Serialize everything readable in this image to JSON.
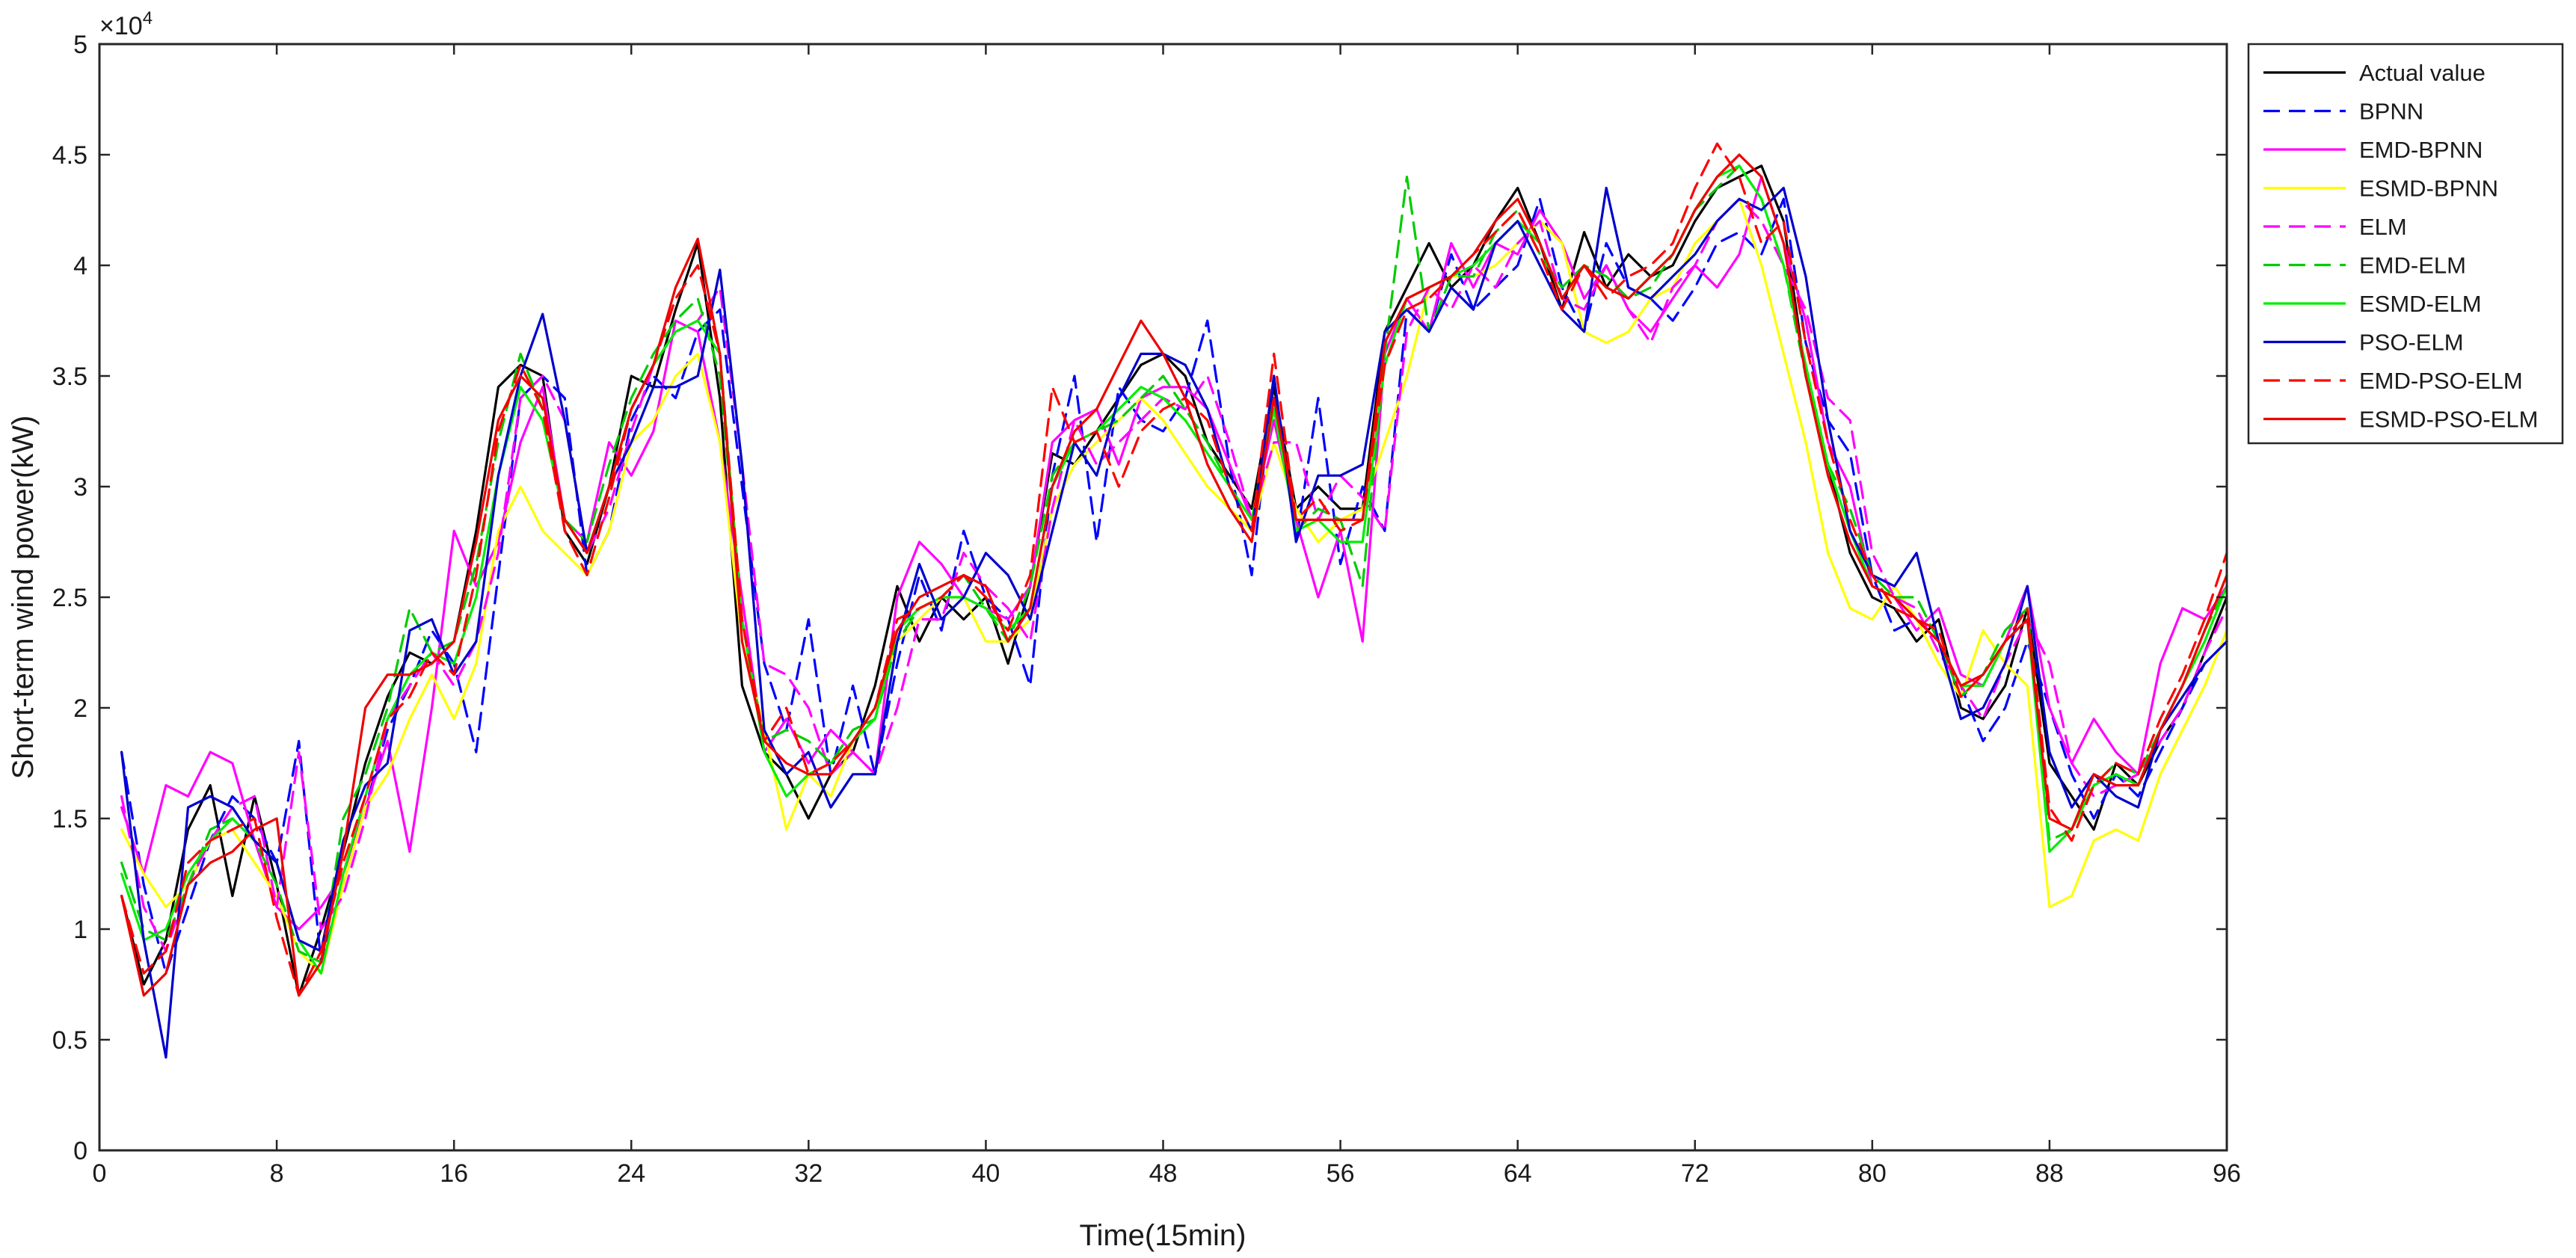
{
  "chart_data": {
    "type": "line",
    "xlabel": "Time(15min)",
    "ylabel": "Short-term wind power(kW)",
    "y_exponent_label": "×10",
    "y_exponent_power": "4",
    "xlim": [
      0,
      96
    ],
    "ylim": [
      0,
      5
    ],
    "x_ticks": [
      0,
      8,
      16,
      24,
      32,
      40,
      48,
      56,
      64,
      72,
      80,
      88,
      96
    ],
    "x_tick_labels": [
      "0",
      "8",
      "16",
      "24",
      "32",
      "40",
      "48",
      "56",
      "64",
      "72",
      "80",
      "88",
      "96"
    ],
    "y_ticks": [
      0,
      0.5,
      1,
      1.5,
      2,
      2.5,
      3,
      3.5,
      4,
      4.5,
      5
    ],
    "y_tick_labels": [
      "0",
      "0.5",
      "1",
      "1.5",
      "2",
      "2.5",
      "3",
      "3.5",
      "4",
      "4.5",
      "5"
    ],
    "grid": false,
    "legend_position": "outside-top-right",
    "x": [
      1,
      2,
      3,
      4,
      5,
      6,
      7,
      8,
      9,
      10,
      11,
      12,
      13,
      14,
      15,
      16,
      17,
      18,
      19,
      20,
      21,
      22,
      23,
      24,
      25,
      26,
      27,
      28,
      29,
      30,
      31,
      32,
      33,
      34,
      35,
      36,
      37,
      38,
      39,
      40,
      41,
      42,
      43,
      44,
      45,
      46,
      47,
      48,
      49,
      50,
      51,
      52,
      53,
      54,
      55,
      56,
      57,
      58,
      59,
      60,
      61,
      62,
      63,
      64,
      65,
      66,
      67,
      68,
      69,
      70,
      71,
      72,
      73,
      74,
      75,
      76,
      77,
      78,
      79,
      80,
      81,
      82,
      83,
      84,
      85,
      86,
      87,
      88,
      89,
      90,
      91,
      92,
      93,
      94,
      95,
      96
    ],
    "series": [
      {
        "name": "Actual value",
        "color": "#000000",
        "dash": "solid",
        "values": [
          1.15,
          0.75,
          0.95,
          1.45,
          1.65,
          1.15,
          1.6,
          1.2,
          0.7,
          1.0,
          1.35,
          1.75,
          2.05,
          2.25,
          2.2,
          2.3,
          2.8,
          3.45,
          3.55,
          3.5,
          2.8,
          2.65,
          3.0,
          3.5,
          3.45,
          3.8,
          4.1,
          3.4,
          2.1,
          1.8,
          1.7,
          1.5,
          1.7,
          1.8,
          2.1,
          2.55,
          2.3,
          2.5,
          2.4,
          2.5,
          2.2,
          2.55,
          3.15,
          3.1,
          3.25,
          3.4,
          3.55,
          3.6,
          3.5,
          3.2,
          3.05,
          2.9,
          3.45,
          2.9,
          3.0,
          2.9,
          2.9,
          3.7,
          3.9,
          4.1,
          3.9,
          4.0,
          4.2,
          4.35,
          4.1,
          3.8,
          4.15,
          3.9,
          4.05,
          3.95,
          4.0,
          4.2,
          4.35,
          4.4,
          4.45,
          4.2,
          3.5,
          3.1,
          2.7,
          2.5,
          2.45,
          2.3,
          2.4,
          2.0,
          1.95,
          2.1,
          2.45,
          1.75,
          1.6,
          1.45,
          1.75,
          1.65,
          1.85,
          2.0,
          2.25,
          2.5
        ]
      },
      {
        "name": "BPNN",
        "color": "#0000ff",
        "dash": "dashed",
        "values": [
          1.8,
          1.2,
          0.8,
          1.1,
          1.4,
          1.6,
          1.5,
          1.3,
          1.85,
          0.85,
          1.2,
          1.55,
          1.9,
          2.1,
          2.35,
          2.2,
          1.8,
          2.6,
          3.4,
          3.5,
          3.4,
          2.6,
          2.8,
          3.3,
          3.5,
          3.4,
          3.7,
          3.8,
          3.0,
          2.2,
          1.9,
          2.4,
          1.7,
          2.1,
          1.7,
          2.2,
          2.6,
          2.35,
          2.8,
          2.5,
          2.4,
          2.1,
          3.05,
          3.5,
          2.75,
          3.45,
          3.3,
          3.25,
          3.4,
          3.75,
          3.1,
          2.6,
          3.5,
          2.75,
          3.4,
          2.65,
          3.0,
          2.8,
          3.8,
          3.7,
          4.05,
          3.8,
          3.9,
          4.0,
          4.3,
          3.9,
          3.7,
          4.1,
          3.9,
          3.85,
          3.75,
          3.9,
          4.1,
          4.15,
          4.05,
          4.3,
          3.65,
          3.3,
          3.15,
          2.6,
          2.35,
          2.4,
          2.3,
          2.1,
          1.85,
          2.0,
          2.3,
          2.0,
          1.7,
          1.5,
          1.7,
          1.6,
          1.8,
          2.0,
          2.2,
          2.3
        ]
      },
      {
        "name": "EMD-BPNN",
        "color": "#ff00ff",
        "dash": "solid",
        "values": [
          1.55,
          1.25,
          1.65,
          1.6,
          1.8,
          1.75,
          1.4,
          1.1,
          1.0,
          1.1,
          1.25,
          1.55,
          1.85,
          1.35,
          2.0,
          2.8,
          2.55,
          2.75,
          3.2,
          3.45,
          2.85,
          2.75,
          3.2,
          3.05,
          3.25,
          3.75,
          3.7,
          3.2,
          2.5,
          1.8,
          1.95,
          1.75,
          1.9,
          1.8,
          1.7,
          2.5,
          2.75,
          2.65,
          2.5,
          2.45,
          2.4,
          2.55,
          3.2,
          3.3,
          3.35,
          3.1,
          3.4,
          3.45,
          3.45,
          3.35,
          3.1,
          2.85,
          3.3,
          2.85,
          2.5,
          2.8,
          2.3,
          3.6,
          3.85,
          3.7,
          4.1,
          3.9,
          4.1,
          4.05,
          4.25,
          4.1,
          3.85,
          4.0,
          3.8,
          3.7,
          3.85,
          4.0,
          3.9,
          4.05,
          4.4,
          4.1,
          3.75,
          3.2,
          3.0,
          2.55,
          2.5,
          2.35,
          2.45,
          2.15,
          2.1,
          2.3,
          2.55,
          2.0,
          1.75,
          1.95,
          1.8,
          1.7,
          2.2,
          2.45,
          2.4,
          2.55
        ]
      },
      {
        "name": "ESMD-BPNN",
        "color": "#ffff00",
        "dash": "solid",
        "values": [
          1.45,
          1.25,
          1.1,
          1.2,
          1.4,
          1.45,
          1.3,
          1.15,
          0.9,
          0.8,
          1.2,
          1.55,
          1.7,
          1.95,
          2.15,
          1.95,
          2.2,
          2.8,
          3.0,
          2.8,
          2.7,
          2.6,
          2.8,
          3.2,
          3.3,
          3.5,
          3.6,
          3.2,
          2.3,
          1.9,
          1.45,
          1.7,
          1.6,
          1.85,
          2.0,
          2.3,
          2.4,
          2.5,
          2.5,
          2.3,
          2.3,
          2.4,
          2.9,
          3.1,
          3.2,
          3.3,
          3.4,
          3.3,
          3.15,
          3.0,
          2.9,
          2.8,
          3.2,
          2.9,
          2.75,
          2.85,
          2.9,
          3.2,
          3.5,
          3.9,
          3.95,
          3.95,
          4.0,
          4.1,
          4.2,
          4.1,
          3.7,
          3.65,
          3.7,
          3.85,
          3.9,
          4.1,
          4.2,
          4.3,
          4.0,
          3.6,
          3.2,
          2.7,
          2.45,
          2.4,
          2.55,
          2.4,
          2.2,
          2.05,
          2.35,
          2.2,
          2.1,
          1.1,
          1.15,
          1.4,
          1.45,
          1.4,
          1.7,
          1.9,
          2.1,
          2.35
        ]
      },
      {
        "name": "ELM",
        "color": "#ff00ff",
        "dash": "dashed",
        "values": [
          1.6,
          1.1,
          0.9,
          1.2,
          1.4,
          1.55,
          1.6,
          1.1,
          1.8,
          1.0,
          1.15,
          1.5,
          1.95,
          2.1,
          2.25,
          2.1,
          2.3,
          2.7,
          3.4,
          3.5,
          3.3,
          2.7,
          2.9,
          3.25,
          3.55,
          3.7,
          3.75,
          3.9,
          3.1,
          2.2,
          2.15,
          2.0,
          1.7,
          1.8,
          1.7,
          2.0,
          2.4,
          2.4,
          2.7,
          2.55,
          2.45,
          2.3,
          2.9,
          3.3,
          3.1,
          3.2,
          3.3,
          3.4,
          3.35,
          3.5,
          3.2,
          2.85,
          3.2,
          3.2,
          2.85,
          3.05,
          2.95,
          2.8,
          3.7,
          3.9,
          3.8,
          4.0,
          3.9,
          4.1,
          4.2,
          3.85,
          3.8,
          4.0,
          3.8,
          3.65,
          3.9,
          4.0,
          4.2,
          4.3,
          4.2,
          4.0,
          3.8,
          3.4,
          3.3,
          2.7,
          2.5,
          2.45,
          2.25,
          2.1,
          1.95,
          2.2,
          2.4,
          2.2,
          1.75,
          1.6,
          1.65,
          1.7,
          1.85,
          2.0,
          2.25,
          2.45
        ]
      },
      {
        "name": "EMD-ELM",
        "color": "#00cc00",
        "dash": "dashed",
        "values": [
          1.3,
          1.0,
          0.95,
          1.2,
          1.45,
          1.5,
          1.4,
          1.2,
          0.9,
          0.85,
          1.5,
          1.7,
          2.0,
          2.45,
          2.25,
          2.3,
          2.65,
          3.2,
          3.6,
          3.35,
          2.85,
          2.75,
          3.1,
          3.4,
          3.6,
          3.75,
          3.85,
          3.5,
          2.4,
          1.85,
          1.9,
          1.85,
          1.75,
          1.9,
          1.95,
          2.3,
          2.45,
          2.5,
          2.6,
          2.45,
          2.3,
          2.55,
          3.05,
          3.2,
          3.25,
          3.3,
          3.4,
          3.5,
          3.35,
          3.2,
          3.0,
          2.85,
          3.4,
          2.8,
          2.9,
          2.85,
          2.55,
          3.6,
          4.4,
          3.7,
          3.95,
          3.95,
          4.15,
          4.25,
          4.05,
          3.9,
          4.0,
          3.95,
          3.85,
          3.9,
          4.05,
          4.25,
          4.35,
          4.45,
          4.3,
          4.0,
          3.5,
          3.1,
          2.9,
          2.6,
          2.5,
          2.5,
          2.3,
          2.05,
          2.15,
          2.35,
          2.45,
          1.4,
          1.45,
          1.65,
          1.75,
          1.7,
          1.9,
          2.1,
          2.35,
          2.55
        ]
      },
      {
        "name": "ESMD-ELM",
        "color": "#00ee00",
        "dash": "solid",
        "values": [
          1.25,
          0.95,
          1.0,
          1.25,
          1.4,
          1.5,
          1.4,
          1.3,
          0.95,
          0.8,
          1.25,
          1.6,
          1.95,
          2.15,
          2.25,
          2.2,
          2.5,
          3.05,
          3.45,
          3.3,
          2.85,
          2.7,
          3.0,
          3.35,
          3.55,
          3.7,
          3.75,
          3.6,
          2.4,
          1.8,
          1.6,
          1.7,
          1.75,
          1.85,
          1.95,
          2.35,
          2.45,
          2.5,
          2.5,
          2.45,
          2.35,
          2.45,
          3.0,
          3.2,
          3.25,
          3.35,
          3.45,
          3.4,
          3.3,
          3.15,
          3.0,
          2.85,
          3.35,
          2.8,
          2.85,
          2.75,
          2.75,
          3.55,
          3.85,
          3.9,
          3.95,
          4.0,
          4.1,
          4.2,
          4.1,
          3.85,
          4.0,
          3.9,
          3.85,
          3.95,
          4.05,
          4.25,
          4.4,
          4.45,
          4.3,
          4.0,
          3.55,
          3.1,
          2.8,
          2.55,
          2.5,
          2.4,
          2.3,
          2.1,
          2.1,
          2.3,
          2.4,
          1.35,
          1.45,
          1.65,
          1.7,
          1.65,
          1.9,
          2.1,
          2.3,
          2.55
        ]
      },
      {
        "name": "PSO-ELM",
        "color": "#0000cc",
        "dash": "solid",
        "values": [
          1.8,
          0.95,
          0.42,
          1.55,
          1.6,
          1.55,
          1.4,
          1.3,
          0.95,
          0.9,
          1.4,
          1.65,
          1.75,
          2.35,
          2.4,
          2.15,
          2.3,
          3.05,
          3.5,
          3.78,
          3.3,
          2.7,
          3.0,
          3.2,
          3.45,
          3.45,
          3.5,
          3.98,
          3.1,
          1.9,
          1.7,
          1.8,
          1.55,
          1.7,
          1.7,
          2.3,
          2.65,
          2.4,
          2.5,
          2.7,
          2.6,
          2.4,
          2.8,
          3.2,
          3.05,
          3.4,
          3.6,
          3.6,
          3.55,
          3.35,
          3.0,
          2.8,
          3.5,
          2.75,
          3.05,
          3.05,
          3.1,
          3.7,
          3.8,
          3.7,
          3.9,
          3.8,
          4.1,
          4.2,
          4.0,
          3.8,
          3.7,
          4.35,
          3.9,
          3.85,
          3.95,
          4.05,
          4.2,
          4.3,
          4.25,
          4.35,
          3.95,
          3.3,
          2.8,
          2.6,
          2.55,
          2.7,
          2.3,
          1.95,
          2.0,
          2.2,
          2.55,
          1.8,
          1.55,
          1.7,
          1.6,
          1.55,
          1.9,
          2.05,
          2.2,
          2.3
        ]
      },
      {
        "name": "EMD-PSO-ELM",
        "color": "#ff0000",
        "dash": "dashed",
        "values": [
          1.15,
          0.8,
          0.9,
          1.3,
          1.4,
          1.45,
          1.5,
          1.05,
          0.7,
          0.9,
          1.3,
          1.6,
          1.95,
          2.05,
          2.25,
          2.15,
          2.6,
          3.25,
          3.55,
          3.35,
          2.8,
          2.6,
          2.95,
          3.35,
          3.55,
          3.85,
          4.0,
          3.6,
          2.4,
          1.85,
          2.0,
          1.7,
          1.75,
          1.85,
          2.0,
          2.4,
          2.45,
          2.5,
          2.6,
          2.5,
          2.35,
          2.6,
          3.45,
          3.2,
          3.25,
          3.0,
          3.25,
          3.35,
          3.4,
          3.3,
          3.0,
          2.8,
          3.6,
          2.85,
          2.95,
          2.8,
          2.85,
          3.55,
          3.8,
          3.85,
          3.95,
          4.05,
          4.15,
          4.25,
          4.05,
          3.8,
          4.0,
          3.85,
          3.95,
          4.0,
          4.1,
          4.35,
          4.55,
          4.4,
          4.1,
          4.2,
          3.65,
          3.2,
          2.85,
          2.6,
          2.45,
          2.4,
          2.35,
          2.05,
          2.15,
          2.3,
          2.45,
          1.55,
          1.4,
          1.65,
          1.75,
          1.7,
          1.95,
          2.15,
          2.4,
          2.7
        ]
      },
      {
        "name": "ESMD-PSO-ELM",
        "color": "#ee0000",
        "dash": "solid",
        "values": [
          1.15,
          0.7,
          0.8,
          1.2,
          1.3,
          1.35,
          1.45,
          1.5,
          0.7,
          0.85,
          1.35,
          2.0,
          2.15,
          2.15,
          2.2,
          2.3,
          2.75,
          3.3,
          3.5,
          3.4,
          2.85,
          2.7,
          3.0,
          3.35,
          3.55,
          3.9,
          4.12,
          3.6,
          2.3,
          1.85,
          1.75,
          1.7,
          1.7,
          1.85,
          2.0,
          2.35,
          2.5,
          2.55,
          2.6,
          2.55,
          2.3,
          2.45,
          3.0,
          3.25,
          3.35,
          3.55,
          3.75,
          3.6,
          3.4,
          3.1,
          2.9,
          2.75,
          3.4,
          2.85,
          2.85,
          2.85,
          2.85,
          3.65,
          3.85,
          3.9,
          3.95,
          4.05,
          4.2,
          4.3,
          4.1,
          3.85,
          4.0,
          3.9,
          3.85,
          3.95,
          4.05,
          4.25,
          4.4,
          4.5,
          4.4,
          4.1,
          3.5,
          3.05,
          2.75,
          2.55,
          2.5,
          2.4,
          2.3,
          2.1,
          2.15,
          2.3,
          2.4,
          1.5,
          1.45,
          1.7,
          1.65,
          1.65,
          1.9,
          2.1,
          2.35,
          2.6
        ]
      }
    ]
  }
}
